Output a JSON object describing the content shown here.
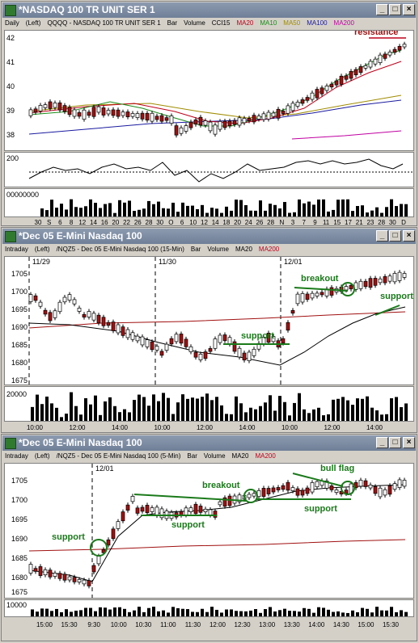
{
  "windows": [
    {
      "title": "*NASDAQ 100 TR UNIT SER 1",
      "header": [
        "Daily",
        "(Left)",
        "QQQQ - NASDAQ 100 TR UNIT SER 1",
        "Bar",
        "Volume",
        "CCI15",
        "MA20",
        "MA10",
        "MA50",
        "MA100",
        "MA200"
      ],
      "header_colors": [
        "#000",
        "#000",
        "#000",
        "#000",
        "#000",
        "#000",
        "#c0001a",
        "#1a8c1a",
        "#a08c00",
        "#1a1aa0",
        "#c000a0"
      ],
      "price_ticks": [
        "42",
        "41",
        "40",
        "39",
        "38"
      ],
      "cci_ticks": [
        "200"
      ],
      "volume_ticks": [
        "00000000"
      ],
      "x_ticks": [
        "30",
        "S",
        "6",
        "8",
        "12",
        "14",
        "16",
        "20",
        "22",
        "26",
        "28",
        "30",
        "O",
        "6",
        "10",
        "12",
        "14",
        "18",
        "20",
        "24",
        "26",
        "28",
        "N",
        "3",
        "7",
        "9",
        "11",
        "15",
        "17",
        "21",
        "23",
        "28",
        "30",
        "D"
      ],
      "annotation": "resistance"
    },
    {
      "title": "*Dec 05  E-Mini Nasdaq 100",
      "header": [
        "Intraday",
        "(Left)",
        "/NQZ5 - Dec 05 E-Mini Nasdaq 100 (15-Min)",
        "Bar",
        "Volume",
        "MA20",
        "MA200"
      ],
      "header_colors": [
        "#000",
        "#000",
        "#000",
        "#000",
        "#000",
        "#000",
        "#c0001a"
      ],
      "price_ticks": [
        "1705",
        "1700",
        "1695",
        "1690",
        "1685",
        "1680",
        "1675"
      ],
      "volume_ticks": [
        "20000"
      ],
      "date_labels": [
        "11/29",
        "11/30",
        "12/01"
      ],
      "x_ticks": [
        "10:00",
        "12:00",
        "14:00",
        "10:00",
        "12:00",
        "14:00",
        "10:00",
        "12:00",
        "14:00"
      ],
      "annotations": [
        "breakout",
        "support",
        "support"
      ]
    },
    {
      "title": "*Dec 05  E-Mini Nasdaq 100",
      "header": [
        "Intraday",
        "(Left)",
        "/NQZ5 - Dec 05 E-Mini Nasdaq 100 (5-Min)",
        "Bar",
        "Volume",
        "MA20",
        "MA200"
      ],
      "header_colors": [
        "#000",
        "#000",
        "#000",
        "#000",
        "#000",
        "#000",
        "#c0001a"
      ],
      "price_ticks": [
        "1705",
        "1700",
        "1695",
        "1690",
        "1685",
        "1680",
        "1675"
      ],
      "volume_ticks": [
        "10000"
      ],
      "date_labels": [
        "12/01"
      ],
      "x_ticks": [
        "15:00",
        "15:30",
        "9:30",
        "10:00",
        "10:30",
        "11:00",
        "11:30",
        "12:00",
        "12:30",
        "13:00",
        "13:30",
        "14:00",
        "14:30",
        "15:00",
        "15:30"
      ],
      "annotations": [
        "support",
        "support",
        "breakout",
        "support",
        "bull flag"
      ]
    }
  ],
  "buttons": {
    "minimize": "_",
    "maximize": "□",
    "close": "×"
  }
}
